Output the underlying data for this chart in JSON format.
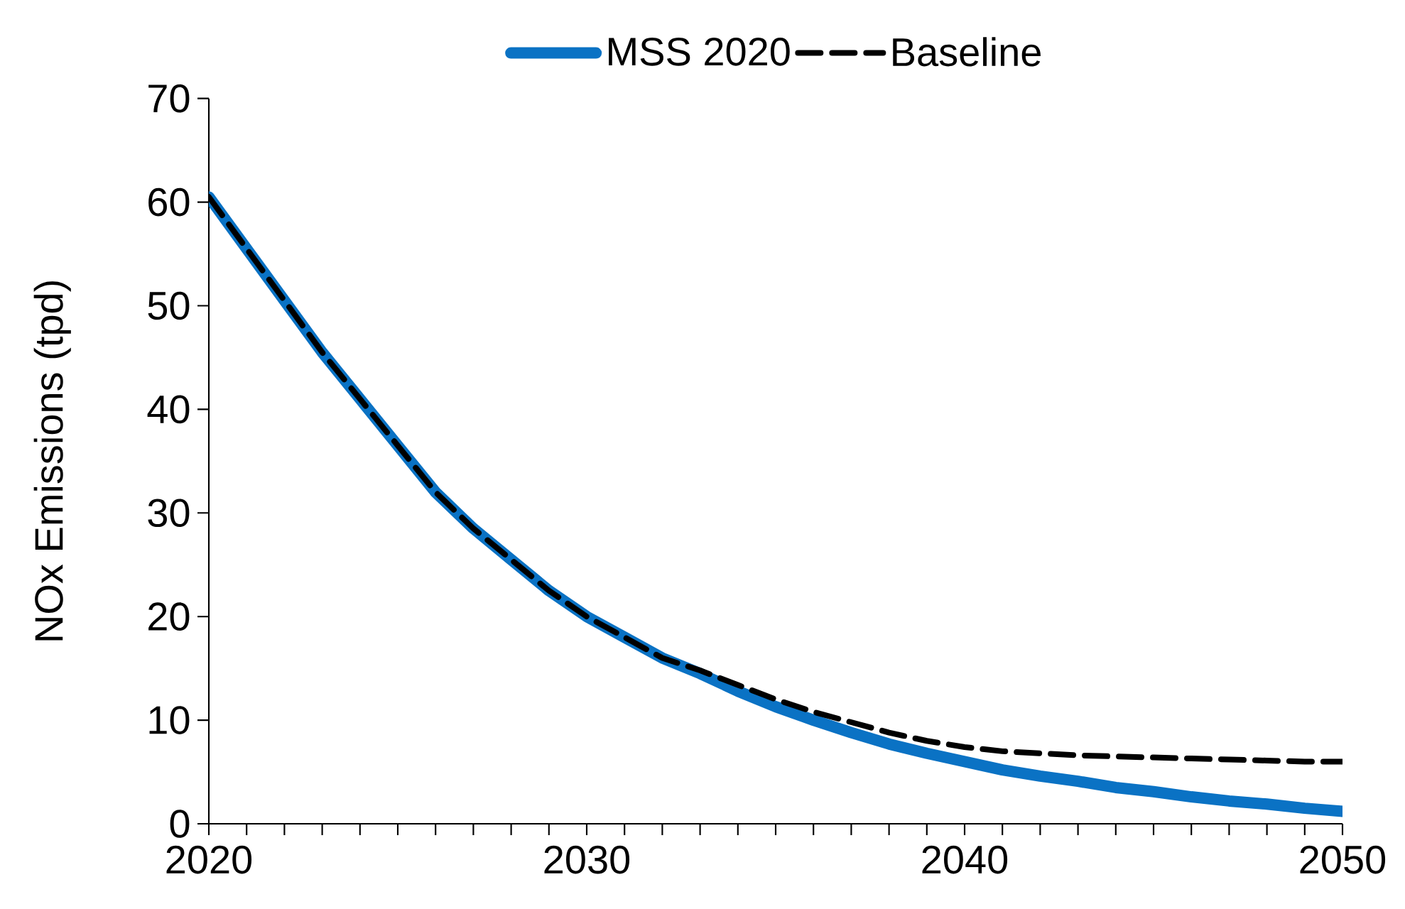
{
  "chart_data": {
    "type": "line",
    "ylabel": "NOx Emissions (tpd)",
    "x": [
      2020,
      2021,
      2022,
      2023,
      2024,
      2025,
      2026,
      2027,
      2028,
      2029,
      2030,
      2031,
      2032,
      2033,
      2034,
      2035,
      2036,
      2037,
      2038,
      2039,
      2040,
      2041,
      2042,
      2043,
      2044,
      2045,
      2046,
      2047,
      2048,
      2049,
      2050
    ],
    "series": [
      {
        "name": "MSS 2020",
        "color": "#0a72c4",
        "line_style": "solid",
        "values": [
          60.5,
          55.5,
          50.5,
          45.5,
          41,
          36.5,
          32,
          28.5,
          25.5,
          22.5,
          20,
          18,
          16,
          14.5,
          12.8,
          11.3,
          10,
          8.8,
          7.7,
          6.8,
          6,
          5.2,
          4.6,
          4.1,
          3.5,
          3.1,
          2.6,
          2.2,
          1.9,
          1.5,
          1.2
        ]
      },
      {
        "name": "Baseline",
        "color": "#000000",
        "line_style": "dashed",
        "values": [
          60.5,
          55.5,
          50.5,
          45.5,
          41,
          36.5,
          32,
          28.5,
          25.5,
          22.5,
          20,
          18,
          16,
          14.8,
          13.4,
          12,
          10.8,
          9.8,
          8.8,
          8,
          7.4,
          7,
          6.8,
          6.6,
          6.5,
          6.4,
          6.3,
          6.2,
          6.1,
          6,
          6
        ]
      }
    ],
    "xlim": [
      2020,
      2050
    ],
    "ylim": [
      0,
      70
    ],
    "xticks": [
      2020,
      {
        "value": 2021,
        "label": null
      },
      {
        "value": 2022,
        "label": null
      },
      {
        "value": 2023,
        "label": null
      },
      {
        "value": 2024,
        "label": null
      },
      {
        "value": 2025,
        "label": null
      },
      {
        "value": 2026,
        "label": null
      },
      {
        "value": 2027,
        "label": null
      },
      {
        "value": 2028,
        "label": null
      },
      {
        "value": 2029,
        "label": null
      },
      2030,
      {
        "value": 2031,
        "label": null
      },
      {
        "value": 2032,
        "label": null
      },
      {
        "value": 2033,
        "label": null
      },
      {
        "value": 2034,
        "label": null
      },
      {
        "value": 2035,
        "label": null
      },
      {
        "value": 2036,
        "label": null
      },
      {
        "value": 2037,
        "label": null
      },
      {
        "value": 2038,
        "label": null
      },
      {
        "value": 2039,
        "label": null
      },
      2040,
      {
        "value": 2041,
        "label": null
      },
      {
        "value": 2042,
        "label": null
      },
      {
        "value": 2043,
        "label": null
      },
      {
        "value": 2044,
        "label": null
      },
      {
        "value": 2045,
        "label": null
      },
      {
        "value": 2046,
        "label": null
      },
      {
        "value": 2047,
        "label": null
      },
      {
        "value": 2048,
        "label": null
      },
      {
        "value": 2049,
        "label": null
      },
      2050
    ],
    "yticks": [
      0,
      10,
      20,
      30,
      40,
      50,
      60,
      70
    ],
    "grid": false,
    "legend": "top",
    "marker": "none"
  }
}
